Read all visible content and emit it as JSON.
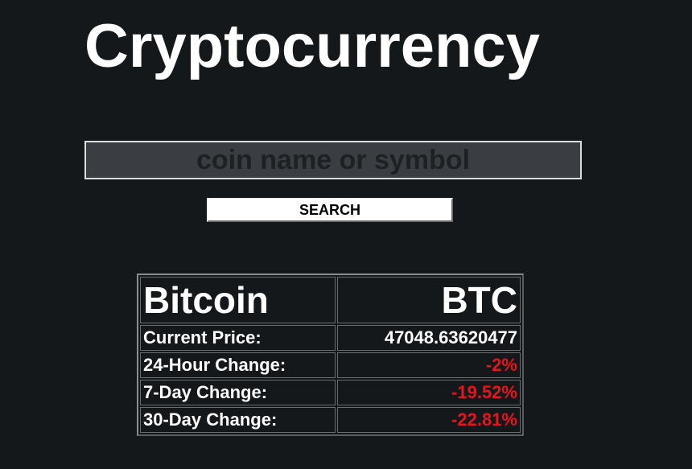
{
  "page": {
    "title": "Cryptocurrency"
  },
  "search": {
    "placeholder": "coin name or symbol",
    "value": "",
    "button_label": "SEARCH"
  },
  "coin": {
    "name": "Bitcoin",
    "symbol": "BTC",
    "rows": [
      {
        "label": "Current Price:",
        "value": "47048.63620477",
        "status": "neutral"
      },
      {
        "label": "24-Hour Change:",
        "value": "-2%",
        "status": "negative"
      },
      {
        "label": "7-Day Change:",
        "value": "-19.52%",
        "status": "negative"
      },
      {
        "label": "30-Day Change:",
        "value": "-22.81%",
        "status": "negative"
      }
    ]
  },
  "colors": {
    "background": "#15181b",
    "text": "#ffffff",
    "negative": "#e8141c",
    "input_background": "#3a3d41"
  }
}
